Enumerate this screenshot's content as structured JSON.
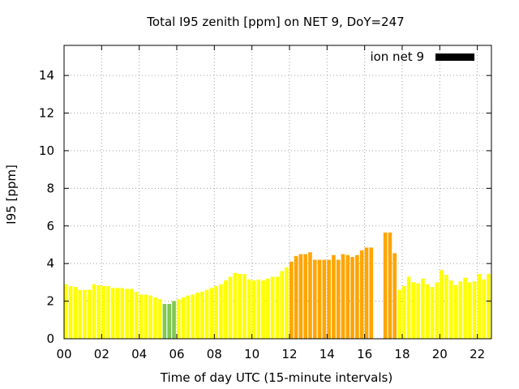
{
  "chart_data": {
    "type": "bar",
    "title": "Total I95 zenith [ppm] on NET 9, DoY=247",
    "xlabel": "Time of day UTC (15-minute intervals)",
    "ylabel": "I95 [ppm]",
    "xlim": [
      0,
      22.75
    ],
    "ylim": [
      0,
      15.6
    ],
    "xticks": [
      {
        "v": 0,
        "label": "00"
      },
      {
        "v": 2,
        "label": "02"
      },
      {
        "v": 4,
        "label": "04"
      },
      {
        "v": 6,
        "label": "06"
      },
      {
        "v": 8,
        "label": "08"
      },
      {
        "v": 10,
        "label": "10"
      },
      {
        "v": 12,
        "label": "12"
      },
      {
        "v": 14,
        "label": "14"
      },
      {
        "v": 16,
        "label": "16"
      },
      {
        "v": 18,
        "label": "18"
      },
      {
        "v": 20,
        "label": "20"
      },
      {
        "v": 22,
        "label": "22"
      }
    ],
    "yticks": [
      {
        "v": 0,
        "label": "0"
      },
      {
        "v": 2,
        "label": "2"
      },
      {
        "v": 4,
        "label": "4"
      },
      {
        "v": 6,
        "label": "6"
      },
      {
        "v": 8,
        "label": "8"
      },
      {
        "v": 10,
        "label": "10"
      },
      {
        "v": 12,
        "label": "12"
      },
      {
        "v": 14,
        "label": "14"
      }
    ],
    "grid": true,
    "legend": {
      "label": "ion net 9",
      "color": "#000000",
      "placement": "top-right"
    },
    "colors": {
      "yellow": "#ffff00",
      "green": "#7ec850",
      "orange": "#ffa500"
    },
    "bar_width_hours": 0.2,
    "bars": [
      {
        "t": 0.0,
        "v": 2.9,
        "c": "yellow"
      },
      {
        "t": 0.25,
        "v": 2.8,
        "c": "yellow"
      },
      {
        "t": 0.5,
        "v": 2.75,
        "c": "yellow"
      },
      {
        "t": 0.75,
        "v": 2.6,
        "c": "yellow"
      },
      {
        "t": 1.0,
        "v": 2.6,
        "c": "yellow"
      },
      {
        "t": 1.25,
        "v": 2.6,
        "c": "yellow"
      },
      {
        "t": 1.5,
        "v": 2.9,
        "c": "yellow"
      },
      {
        "t": 1.75,
        "v": 2.85,
        "c": "yellow"
      },
      {
        "t": 2.0,
        "v": 2.8,
        "c": "yellow"
      },
      {
        "t": 2.25,
        "v": 2.8,
        "c": "yellow"
      },
      {
        "t": 2.5,
        "v": 2.7,
        "c": "yellow"
      },
      {
        "t": 2.75,
        "v": 2.7,
        "c": "yellow"
      },
      {
        "t": 3.0,
        "v": 2.7,
        "c": "yellow"
      },
      {
        "t": 3.25,
        "v": 2.65,
        "c": "yellow"
      },
      {
        "t": 3.5,
        "v": 2.65,
        "c": "yellow"
      },
      {
        "t": 3.75,
        "v": 2.5,
        "c": "yellow"
      },
      {
        "t": 4.0,
        "v": 2.35,
        "c": "yellow"
      },
      {
        "t": 4.25,
        "v": 2.35,
        "c": "yellow"
      },
      {
        "t": 4.5,
        "v": 2.3,
        "c": "yellow"
      },
      {
        "t": 4.75,
        "v": 2.2,
        "c": "yellow"
      },
      {
        "t": 5.0,
        "v": 2.1,
        "c": "yellow"
      },
      {
        "t": 5.25,
        "v": 1.85,
        "c": "green"
      },
      {
        "t": 5.5,
        "v": 1.85,
        "c": "green"
      },
      {
        "t": 5.75,
        "v": 2.0,
        "c": "green"
      },
      {
        "t": 6.0,
        "v": 2.1,
        "c": "yellow"
      },
      {
        "t": 6.25,
        "v": 2.2,
        "c": "yellow"
      },
      {
        "t": 6.5,
        "v": 2.3,
        "c": "yellow"
      },
      {
        "t": 6.75,
        "v": 2.35,
        "c": "yellow"
      },
      {
        "t": 7.0,
        "v": 2.45,
        "c": "yellow"
      },
      {
        "t": 7.25,
        "v": 2.5,
        "c": "yellow"
      },
      {
        "t": 7.5,
        "v": 2.6,
        "c": "yellow"
      },
      {
        "t": 7.75,
        "v": 2.7,
        "c": "yellow"
      },
      {
        "t": 8.0,
        "v": 2.8,
        "c": "yellow"
      },
      {
        "t": 8.25,
        "v": 2.9,
        "c": "yellow"
      },
      {
        "t": 8.5,
        "v": 3.1,
        "c": "yellow"
      },
      {
        "t": 8.75,
        "v": 3.3,
        "c": "yellow"
      },
      {
        "t": 9.0,
        "v": 3.5,
        "c": "yellow"
      },
      {
        "t": 9.25,
        "v": 3.45,
        "c": "yellow"
      },
      {
        "t": 9.5,
        "v": 3.45,
        "c": "yellow"
      },
      {
        "t": 9.75,
        "v": 3.15,
        "c": "yellow"
      },
      {
        "t": 10.0,
        "v": 3.1,
        "c": "yellow"
      },
      {
        "t": 10.25,
        "v": 3.15,
        "c": "yellow"
      },
      {
        "t": 10.5,
        "v": 3.1,
        "c": "yellow"
      },
      {
        "t": 10.75,
        "v": 3.2,
        "c": "yellow"
      },
      {
        "t": 11.0,
        "v": 3.3,
        "c": "yellow"
      },
      {
        "t": 11.25,
        "v": 3.3,
        "c": "yellow"
      },
      {
        "t": 11.5,
        "v": 3.6,
        "c": "yellow"
      },
      {
        "t": 11.75,
        "v": 3.8,
        "c": "yellow"
      },
      {
        "t": 12.0,
        "v": 4.1,
        "c": "orange"
      },
      {
        "t": 12.25,
        "v": 4.4,
        "c": "orange"
      },
      {
        "t": 12.5,
        "v": 4.5,
        "c": "orange"
      },
      {
        "t": 12.75,
        "v": 4.5,
        "c": "orange"
      },
      {
        "t": 13.0,
        "v": 4.6,
        "c": "orange"
      },
      {
        "t": 13.25,
        "v": 4.2,
        "c": "orange"
      },
      {
        "t": 13.5,
        "v": 4.2,
        "c": "orange"
      },
      {
        "t": 13.75,
        "v": 4.2,
        "c": "orange"
      },
      {
        "t": 14.0,
        "v": 4.2,
        "c": "orange"
      },
      {
        "t": 14.25,
        "v": 4.45,
        "c": "orange"
      },
      {
        "t": 14.5,
        "v": 4.2,
        "c": "orange"
      },
      {
        "t": 14.75,
        "v": 4.5,
        "c": "orange"
      },
      {
        "t": 15.0,
        "v": 4.45,
        "c": "orange"
      },
      {
        "t": 15.25,
        "v": 4.35,
        "c": "orange"
      },
      {
        "t": 15.5,
        "v": 4.45,
        "c": "orange"
      },
      {
        "t": 15.75,
        "v": 4.7,
        "c": "orange"
      },
      {
        "t": 16.0,
        "v": 4.85,
        "c": "orange"
      },
      {
        "t": 16.25,
        "v": 4.85,
        "c": "orange"
      },
      {
        "t": 17.0,
        "v": 5.65,
        "c": "orange"
      },
      {
        "t": 17.25,
        "v": 5.65,
        "c": "orange"
      },
      {
        "t": 17.5,
        "v": 4.55,
        "c": "orange"
      },
      {
        "t": 17.75,
        "v": 2.6,
        "c": "yellow"
      },
      {
        "t": 18.0,
        "v": 2.8,
        "c": "yellow"
      },
      {
        "t": 18.25,
        "v": 3.3,
        "c": "yellow"
      },
      {
        "t": 18.5,
        "v": 3.0,
        "c": "yellow"
      },
      {
        "t": 18.75,
        "v": 2.95,
        "c": "yellow"
      },
      {
        "t": 19.0,
        "v": 3.2,
        "c": "yellow"
      },
      {
        "t": 19.25,
        "v": 2.9,
        "c": "yellow"
      },
      {
        "t": 19.5,
        "v": 2.75,
        "c": "yellow"
      },
      {
        "t": 19.75,
        "v": 3.0,
        "c": "yellow"
      },
      {
        "t": 20.0,
        "v": 3.65,
        "c": "yellow"
      },
      {
        "t": 20.25,
        "v": 3.4,
        "c": "yellow"
      },
      {
        "t": 20.5,
        "v": 3.1,
        "c": "yellow"
      },
      {
        "t": 20.75,
        "v": 2.85,
        "c": "yellow"
      },
      {
        "t": 21.0,
        "v": 3.05,
        "c": "yellow"
      },
      {
        "t": 21.25,
        "v": 3.25,
        "c": "yellow"
      },
      {
        "t": 21.5,
        "v": 3.0,
        "c": "yellow"
      },
      {
        "t": 21.75,
        "v": 3.05,
        "c": "yellow"
      },
      {
        "t": 22.0,
        "v": 3.45,
        "c": "yellow"
      },
      {
        "t": 22.25,
        "v": 3.15,
        "c": "yellow"
      },
      {
        "t": 22.5,
        "v": 3.45,
        "c": "yellow"
      }
    ]
  }
}
